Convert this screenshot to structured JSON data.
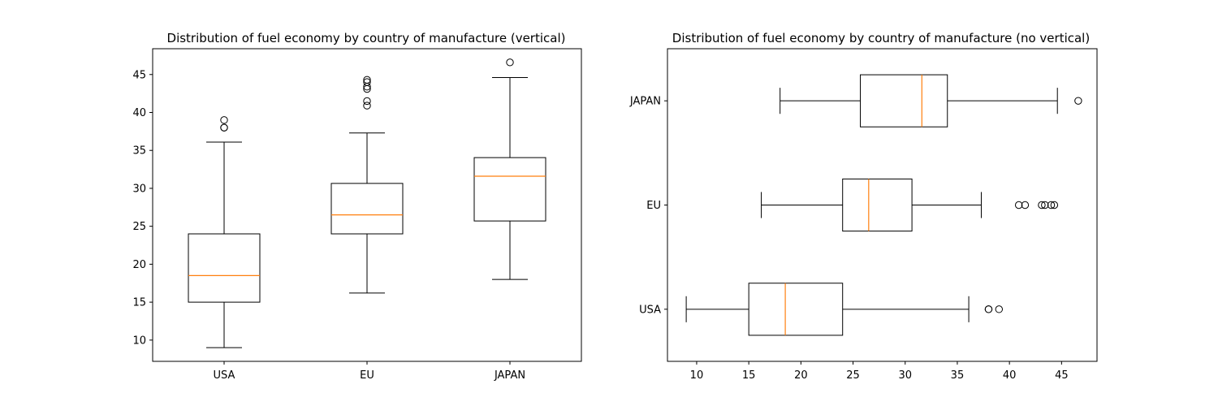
{
  "chart_data": [
    {
      "type": "boxplot",
      "orientation": "vertical",
      "title": "Distribution of fuel economy by country of manufacture (vertical)",
      "categories": [
        "USA",
        "EU",
        "JAPAN"
      ],
      "value_axis": {
        "range": [
          7.2,
          48.4
        ],
        "ticks": [
          "10",
          "15",
          "20",
          "25",
          "30",
          "35",
          "40",
          "45"
        ]
      },
      "grid": false,
      "boxes": [
        {
          "category": "USA",
          "whisker_low": 9,
          "q1": 15,
          "median": 18.5,
          "q3": 24,
          "whisker_high": 36.1,
          "outliers": [
            38,
            38,
            39
          ]
        },
        {
          "category": "EU",
          "whisker_low": 16.2,
          "q1": 24,
          "median": 26.5,
          "q3": 30.65,
          "whisker_high": 37.3,
          "outliers": [
            40.9,
            41.5,
            43.1,
            43.4,
            44,
            44.3
          ]
        },
        {
          "category": "JAPAN",
          "whisker_low": 18,
          "q1": 25.7,
          "median": 31.6,
          "q3": 34.05,
          "whisker_high": 44.6,
          "outliers": [
            46.6
          ]
        }
      ]
    },
    {
      "type": "boxplot",
      "orientation": "horizontal",
      "title": "Distribution of fuel economy by country of manufacture (no vertical)",
      "categories": [
        "USA",
        "EU",
        "JAPAN"
      ],
      "value_axis": {
        "range": [
          7.2,
          48.4
        ],
        "ticks": [
          "10",
          "15",
          "20",
          "25",
          "30",
          "35",
          "40",
          "45"
        ]
      },
      "grid": false,
      "boxes": [
        {
          "category": "USA",
          "whisker_low": 9,
          "q1": 15,
          "median": 18.5,
          "q3": 24,
          "whisker_high": 36.1,
          "outliers": [
            38,
            38,
            39
          ]
        },
        {
          "category": "EU",
          "whisker_low": 16.2,
          "q1": 24,
          "median": 26.5,
          "q3": 30.65,
          "whisker_high": 37.3,
          "outliers": [
            40.9,
            41.5,
            43.1,
            43.4,
            44,
            44.3
          ]
        },
        {
          "category": "JAPAN",
          "whisker_low": 18,
          "q1": 25.7,
          "median": 31.6,
          "q3": 34.05,
          "whisker_high": 44.6,
          "outliers": [
            46.6
          ]
        }
      ]
    }
  ],
  "colors": {
    "median": "#ff7f0e",
    "box": "#000000",
    "background": "#ffffff"
  }
}
